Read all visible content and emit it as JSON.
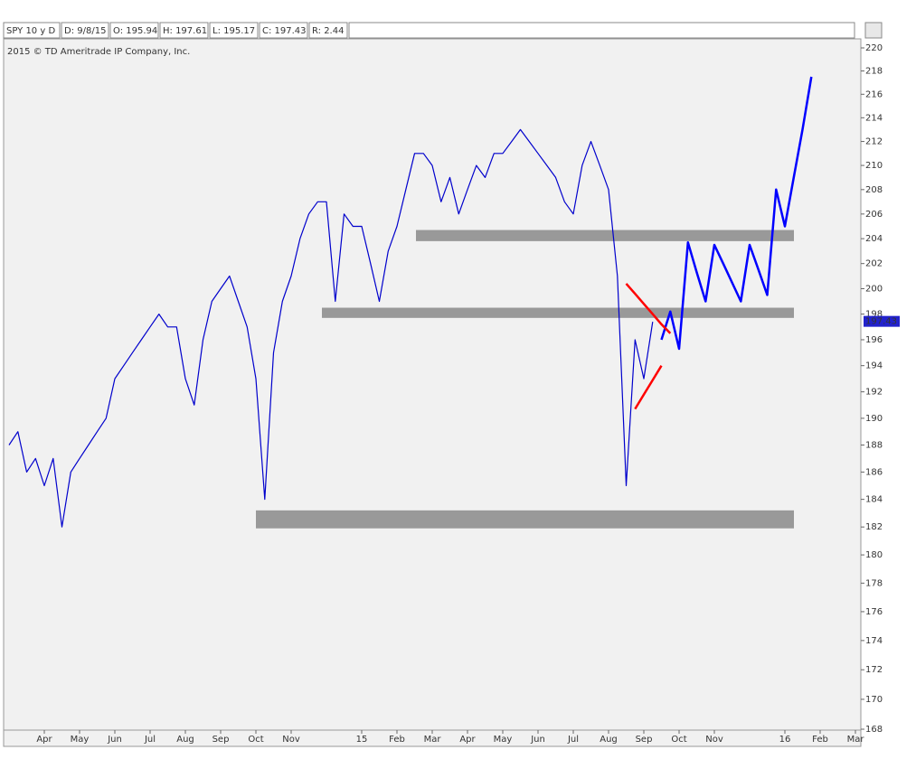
{
  "chart_data": {
    "type": "line",
    "header_fields": [
      "SPY 10 y D",
      "D: 9/8/15",
      "O: 195.94",
      "H: 197.61",
      "L: 195.17",
      "C: 197.43",
      "R: 2.44"
    ],
    "subtitle": "2015 © TD Ameritrade IP Company, Inc.",
    "last_price": 197.43,
    "log_scale": true,
    "ylim": [
      168,
      220
    ],
    "yticks": [
      168,
      170,
      172,
      174,
      176,
      178,
      180,
      182,
      184,
      186,
      188,
      190,
      192,
      194,
      196,
      198,
      200,
      202,
      204,
      206,
      208,
      210,
      212,
      214,
      216,
      218,
      220
    ],
    "categories": [
      null,
      null,
      null,
      null,
      "Apr",
      null,
      null,
      null,
      "May",
      null,
      null,
      null,
      "Jun",
      null,
      null,
      null,
      "Jul",
      null,
      null,
      null,
      "Aug",
      null,
      null,
      null,
      "Sep",
      null,
      null,
      null,
      "Oct",
      null,
      null,
      null,
      "Nov",
      null,
      null,
      null,
      null,
      null,
      null,
      null,
      "15",
      null,
      null,
      null,
      "Feb",
      null,
      null,
      null,
      "Mar",
      null,
      null,
      null,
      "Apr",
      null,
      null,
      null,
      "May",
      null,
      null,
      null,
      "Jun",
      null,
      null,
      null,
      "Jul",
      null,
      null,
      null,
      "Aug",
      null,
      null,
      null,
      "Sep",
      null,
      null,
      null,
      "Oct",
      null,
      null,
      null,
      "Nov",
      null,
      null,
      null,
      null,
      null,
      null,
      null,
      "16",
      null,
      null,
      null,
      "Feb",
      null,
      null,
      null,
      "Mar",
      null
    ],
    "series": [
      {
        "color": "#0000cc",
        "width": 1.2,
        "values": [
          188,
          189,
          186,
          187,
          185,
          187,
          182,
          186,
          187,
          188,
          189,
          190,
          193,
          194,
          195,
          196,
          197,
          198,
          197,
          197,
          193,
          191,
          196,
          199,
          200,
          201,
          199,
          197,
          193,
          184,
          195,
          199,
          201,
          204,
          206,
          207,
          207,
          199,
          206,
          205,
          205,
          202,
          199,
          203,
          205,
          208,
          211,
          211,
          210,
          207,
          209,
          206,
          208,
          210,
          209,
          211,
          211,
          212,
          213,
          212,
          211,
          210,
          209,
          207,
          206,
          210,
          212,
          210,
          208,
          201,
          185,
          196,
          193,
          197.4,
          null,
          null,
          null,
          null,
          null,
          null,
          null,
          null,
          null,
          null,
          null,
          null,
          null,
          null,
          null,
          null,
          null,
          null,
          null,
          null,
          null,
          null,
          null,
          null
        ]
      },
      {
        "color": "#0000ff",
        "width": 2.5,
        "values": [
          null,
          null,
          null,
          null,
          null,
          null,
          null,
          null,
          null,
          null,
          null,
          null,
          null,
          null,
          null,
          null,
          null,
          null,
          null,
          null,
          null,
          null,
          null,
          null,
          null,
          null,
          null,
          null,
          null,
          null,
          null,
          null,
          null,
          null,
          null,
          null,
          null,
          null,
          null,
          null,
          null,
          null,
          null,
          null,
          null,
          null,
          null,
          null,
          null,
          null,
          null,
          null,
          null,
          null,
          null,
          null,
          null,
          null,
          null,
          null,
          null,
          null,
          null,
          null,
          null,
          null,
          null,
          null,
          null,
          null,
          null,
          null,
          null,
          null,
          196,
          198.2,
          195.3,
          203.7,
          201.3,
          199,
          203.5,
          202,
          200.5,
          199,
          203.5,
          201.5,
          199.5,
          208,
          205,
          209,
          213,
          217.5,
          null,
          null,
          null,
          null,
          null,
          null
        ]
      },
      {
        "color": "#ff0000",
        "width": 2.5,
        "values": [
          null,
          null,
          null,
          null,
          null,
          null,
          null,
          null,
          null,
          null,
          null,
          null,
          null,
          null,
          null,
          null,
          null,
          null,
          null,
          null,
          null,
          null,
          null,
          null,
          null,
          null,
          null,
          null,
          null,
          null,
          null,
          null,
          null,
          null,
          null,
          null,
          null,
          null,
          null,
          null,
          null,
          null,
          null,
          null,
          null,
          null,
          null,
          null,
          null,
          null,
          null,
          null,
          null,
          null,
          null,
          null,
          null,
          null,
          null,
          null,
          null,
          null,
          null,
          null,
          null,
          null,
          null,
          null,
          null,
          null,
          200.4,
          199.6,
          198.8,
          198,
          197.2,
          196.5,
          null,
          null,
          null,
          null,
          null,
          null,
          null,
          null,
          null,
          null,
          null,
          null,
          null,
          null,
          null,
          null,
          null,
          null,
          null,
          null,
          null,
          null
        ]
      },
      {
        "color": "#ff0000",
        "width": 2.5,
        "values": [
          null,
          null,
          null,
          null,
          null,
          null,
          null,
          null,
          null,
          null,
          null,
          null,
          null,
          null,
          null,
          null,
          null,
          null,
          null,
          null,
          null,
          null,
          null,
          null,
          null,
          null,
          null,
          null,
          null,
          null,
          null,
          null,
          null,
          null,
          null,
          null,
          null,
          null,
          null,
          null,
          null,
          null,
          null,
          null,
          null,
          null,
          null,
          null,
          null,
          null,
          null,
          null,
          null,
          null,
          null,
          null,
          null,
          null,
          null,
          null,
          null,
          null,
          null,
          null,
          null,
          null,
          null,
          null,
          null,
          null,
          null,
          190.7,
          191.8,
          192.9,
          194,
          null,
          null,
          null,
          null,
          null,
          null,
          null,
          null,
          null,
          null,
          null,
          null,
          null,
          null,
          null,
          null,
          null,
          null,
          null,
          null,
          null,
          null,
          null
        ]
      }
    ],
    "bands": [
      {
        "low": 181.9,
        "high": 183.2,
        "color": "#999999"
      },
      {
        "low": 197.7,
        "high": 198.5,
        "color": "#999999"
      },
      {
        "low": 203.8,
        "high": 204.7,
        "color": "#999999"
      }
    ]
  }
}
